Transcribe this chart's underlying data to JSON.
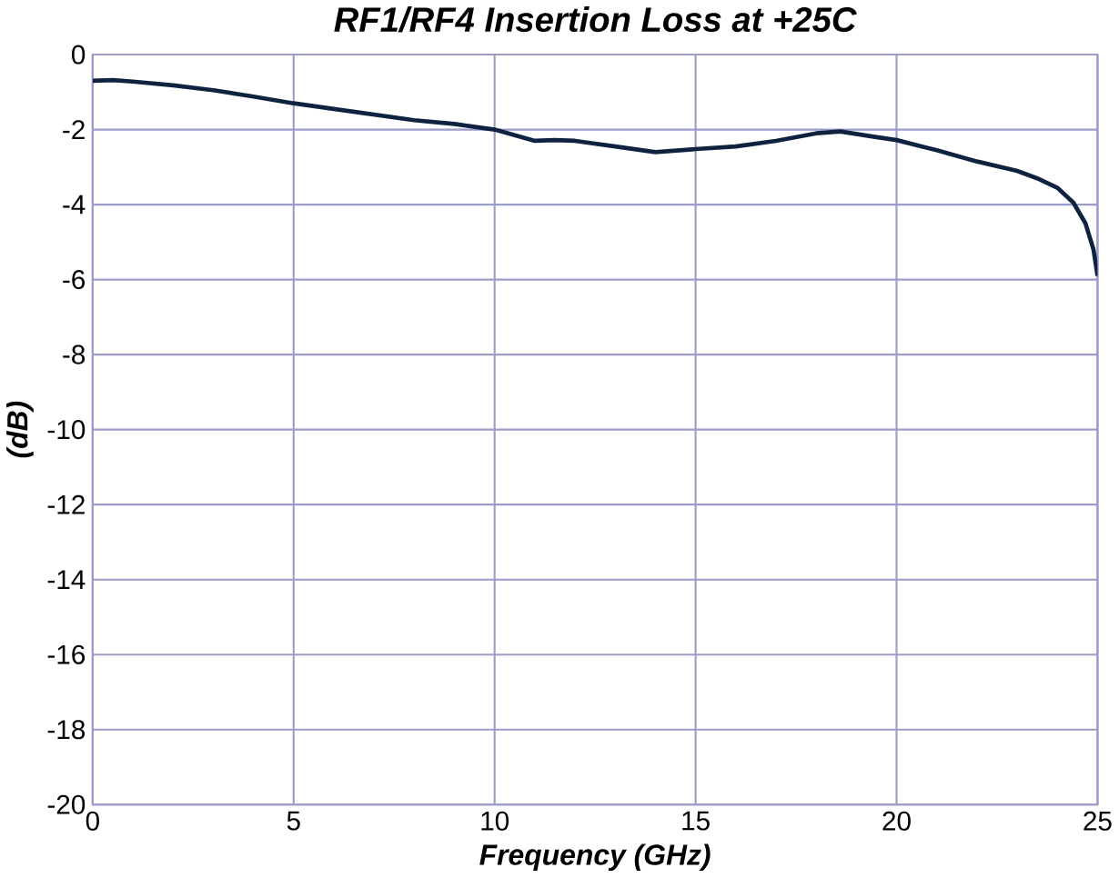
{
  "chart_data": {
    "type": "line",
    "title": "RF1/RF4 Insertion Loss at +25C",
    "xlabel": "Frequency (GHz)",
    "ylabel": "(dB)",
    "series": [
      {
        "color": "#0f2340",
        "x": [
          0,
          0.5,
          1,
          2,
          3,
          4,
          5,
          6,
          7,
          8,
          9,
          10,
          10.5,
          11,
          11.5,
          12,
          13,
          14,
          15,
          16,
          17,
          18,
          18.6,
          19.5,
          20,
          21,
          22,
          23,
          23.5,
          24,
          24.4,
          24.7,
          24.9,
          25
        ],
        "values": [
          -0.7,
          -0.68,
          -0.72,
          -0.82,
          -0.95,
          -1.12,
          -1.3,
          -1.45,
          -1.6,
          -1.75,
          -1.85,
          -2.0,
          -2.15,
          -2.3,
          -2.28,
          -2.3,
          -2.45,
          -2.6,
          -2.52,
          -2.45,
          -2.3,
          -2.1,
          -2.05,
          -2.2,
          -2.28,
          -2.55,
          -2.85,
          -3.1,
          -3.3,
          -3.55,
          -3.95,
          -4.5,
          -5.2,
          -5.9
        ]
      }
    ],
    "xlim": [
      0,
      25
    ],
    "xticks": [
      0,
      5,
      10,
      15,
      20,
      25
    ],
    "ylim": [
      -20,
      0
    ],
    "yticks": [
      0,
      -2,
      -4,
      -6,
      -8,
      -10,
      -12,
      -14,
      -16,
      -18,
      -20
    ],
    "grid": true
  }
}
